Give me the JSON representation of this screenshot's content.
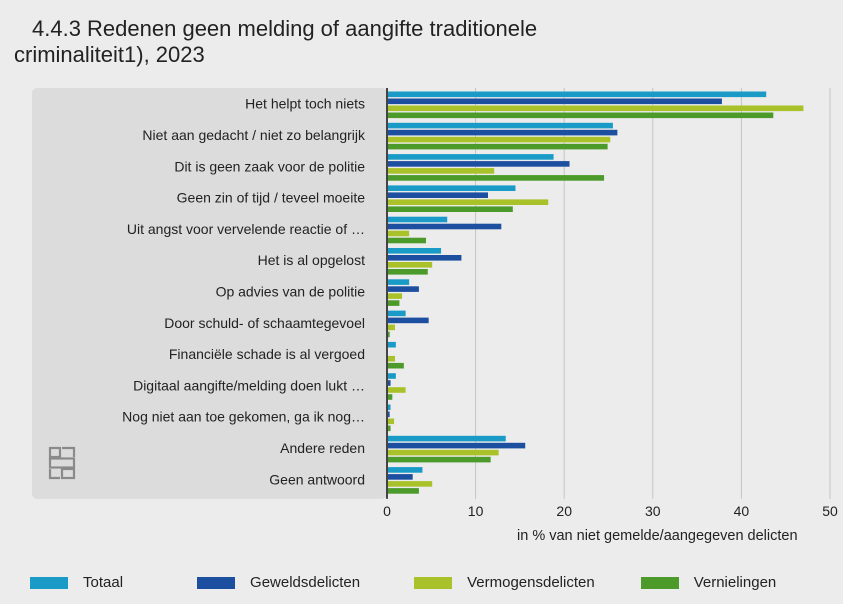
{
  "title_line1": "4.4.3 Redenen geen melding of aangifte traditionele",
  "title_line2": "criminaliteit1), 2023",
  "chart_data": {
    "type": "bar",
    "orientation": "horizontal",
    "categories": [
      "Het helpt toch niets",
      "Niet aan gedacht / niet zo belangrijk",
      "Dit is geen zaak voor de politie",
      "Geen zin of tijd / teveel moeite",
      "Uit angst voor vervelende reactie of …",
      "Het is al opgelost",
      "Op advies van de politie",
      "Door schuld- of schaamtegevoel",
      "Financiële schade is al vergoed",
      "Digitaal aangifte/melding doen lukt …",
      "Nog niet aan toe gekomen, ga ik nog…",
      "Andere reden",
      "Geen antwoord"
    ],
    "series": [
      {
        "name": "Totaal",
        "color": "#1a9bc7",
        "values": [
          42.8,
          25.5,
          18.8,
          14.5,
          6.8,
          6.1,
          2.5,
          2.1,
          1.0,
          1.0,
          0.4,
          13.4,
          4.0
        ]
      },
      {
        "name": "Geweldsdelicten",
        "color": "#1d4fa0",
        "values": [
          37.8,
          26.0,
          20.6,
          11.4,
          12.9,
          8.4,
          3.6,
          4.7,
          0.0,
          0.4,
          0.3,
          15.6,
          2.9
        ]
      },
      {
        "name": "Vermogensdelicten",
        "color": "#a9c22a",
        "values": [
          47.0,
          25.2,
          12.1,
          18.2,
          2.5,
          5.1,
          1.7,
          0.9,
          0.9,
          2.1,
          0.8,
          12.6,
          5.1
        ]
      },
      {
        "name": "Vernielingen",
        "color": "#4c9a2a",
        "values": [
          43.6,
          24.9,
          24.5,
          14.2,
          4.4,
          4.6,
          1.4,
          0.3,
          1.9,
          0.6,
          0.4,
          11.7,
          3.6
        ]
      }
    ],
    "xlim": [
      0,
      50
    ],
    "xticks": [
      "0",
      "10",
      "20",
      "30",
      "40",
      "50"
    ],
    "xlabel": "in % van niet gemelde/aangegeven delicten",
    "ylabel": "",
    "grid": true,
    "legend_position": "bottom"
  },
  "legend_items": [
    "Totaal",
    "Geweldsdelicten",
    "Vermogensdelicten",
    "Vernielingen"
  ],
  "logo_icon": "cbs-logo-icon"
}
